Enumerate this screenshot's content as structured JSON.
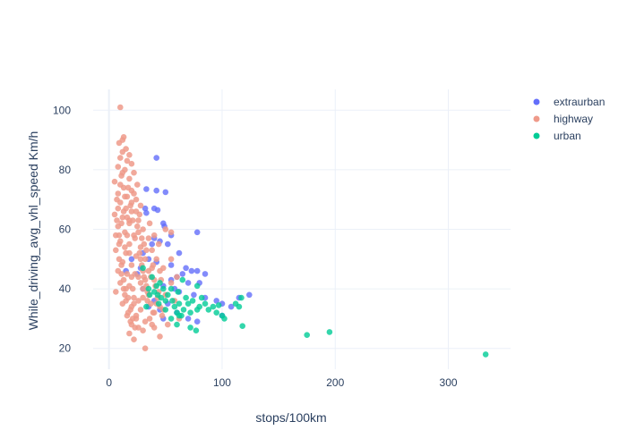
{
  "chart_data": {
    "type": "scatter",
    "title": "",
    "xlabel": "stops/100km",
    "ylabel": "While_driving_avg_vhl_speed Km/h",
    "xlim": [
      -14,
      355
    ],
    "ylim": [
      13,
      107
    ],
    "xticks": [
      0,
      100,
      200,
      300
    ],
    "yticks": [
      20,
      40,
      60,
      80,
      100
    ],
    "grid": true,
    "legend_position": "top-right",
    "series": [
      {
        "name": "extraurban",
        "color": "#636efa",
        "points": [
          [
            42,
            84
          ],
          [
            33,
            73.5
          ],
          [
            42,
            73
          ],
          [
            50,
            72.5
          ],
          [
            32,
            67
          ],
          [
            40,
            67
          ],
          [
            43,
            66.5
          ],
          [
            33,
            65.5
          ],
          [
            48,
            62
          ],
          [
            49,
            61
          ],
          [
            78,
            59
          ],
          [
            55,
            58
          ],
          [
            40,
            57
          ],
          [
            45,
            56
          ],
          [
            52,
            55
          ],
          [
            62,
            52
          ],
          [
            35,
            50
          ],
          [
            42,
            49
          ],
          [
            55,
            48
          ],
          [
            68,
            47
          ],
          [
            73,
            46
          ],
          [
            78,
            46
          ],
          [
            85,
            45
          ],
          [
            65,
            45
          ],
          [
            60,
            44
          ],
          [
            55,
            43
          ],
          [
            70,
            42
          ],
          [
            80,
            42
          ],
          [
            48,
            41
          ],
          [
            58,
            40
          ],
          [
            62,
            39
          ],
          [
            75,
            38
          ],
          [
            85,
            37
          ],
          [
            95,
            36
          ],
          [
            100,
            35
          ],
          [
            108,
            34
          ],
          [
            124,
            38
          ],
          [
            115,
            37
          ],
          [
            40,
            36
          ],
          [
            52,
            35
          ],
          [
            45,
            33
          ],
          [
            60,
            32
          ],
          [
            70,
            30
          ],
          [
            78,
            29
          ],
          [
            100,
            31
          ],
          [
            48,
            30
          ],
          [
            35,
            34
          ],
          [
            30,
            40
          ],
          [
            28,
            47
          ],
          [
            30,
            52
          ],
          [
            38,
            55
          ],
          [
            25,
            45
          ],
          [
            20,
            50
          ],
          [
            15,
            46
          ]
        ]
      },
      {
        "name": "highway",
        "color": "#ef9a8a",
        "points": [
          [
            10,
            101
          ],
          [
            13,
            91
          ],
          [
            12,
            90
          ],
          [
            9,
            89
          ],
          [
            15,
            87
          ],
          [
            12,
            86
          ],
          [
            18,
            85
          ],
          [
            10,
            84
          ],
          [
            16,
            83
          ],
          [
            20,
            82
          ],
          [
            8,
            81
          ],
          [
            14,
            80
          ],
          [
            22,
            79
          ],
          [
            11,
            78
          ],
          [
            18,
            77
          ],
          [
            5,
            76
          ],
          [
            25,
            75
          ],
          [
            13,
            74
          ],
          [
            20,
            73
          ],
          [
            8,
            72
          ],
          [
            16,
            71
          ],
          [
            24,
            70
          ],
          [
            10,
            69
          ],
          [
            28,
            68
          ],
          [
            15,
            67
          ],
          [
            20,
            66
          ],
          [
            5,
            65
          ],
          [
            12,
            64
          ],
          [
            26,
            63
          ],
          [
            18,
            62
          ],
          [
            8,
            61
          ],
          [
            30,
            60
          ],
          [
            14,
            59
          ],
          [
            22,
            58
          ],
          [
            35,
            57
          ],
          [
            10,
            56
          ],
          [
            18,
            55
          ],
          [
            28,
            54
          ],
          [
            6,
            53
          ],
          [
            15,
            52
          ],
          [
            24,
            51
          ],
          [
            32,
            50
          ],
          [
            12,
            49
          ],
          [
            20,
            48
          ],
          [
            38,
            47
          ],
          [
            8,
            46
          ],
          [
            16,
            45
          ],
          [
            26,
            44
          ],
          [
            40,
            43
          ],
          [
            10,
            42
          ],
          [
            18,
            41
          ],
          [
            30,
            40
          ],
          [
            6,
            39
          ],
          [
            14,
            38
          ],
          [
            22,
            37
          ],
          [
            34,
            36
          ],
          [
            12,
            35
          ],
          [
            20,
            34
          ],
          [
            28,
            33
          ],
          [
            40,
            32
          ],
          [
            16,
            31
          ],
          [
            24,
            30
          ],
          [
            32,
            29
          ],
          [
            20,
            28
          ],
          [
            26,
            27
          ],
          [
            30,
            26
          ],
          [
            18,
            25
          ],
          [
            22,
            23
          ],
          [
            32,
            20
          ],
          [
            45,
            24
          ],
          [
            40,
            27
          ],
          [
            48,
            33
          ],
          [
            50,
            38
          ],
          [
            55,
            42
          ],
          [
            45,
            46
          ],
          [
            42,
            50
          ],
          [
            38,
            53
          ],
          [
            55,
            50
          ],
          [
            60,
            44
          ],
          [
            58,
            36
          ],
          [
            62,
            30
          ],
          [
            52,
            28
          ],
          [
            55,
            59
          ],
          [
            50,
            60
          ],
          [
            44,
            55
          ],
          [
            36,
            62
          ],
          [
            40,
            58
          ],
          [
            9,
            58
          ],
          [
            11,
            62
          ],
          [
            13,
            66
          ],
          [
            7,
            70
          ],
          [
            17,
            74
          ],
          [
            19,
            68
          ],
          [
            21,
            63
          ],
          [
            23,
            57
          ],
          [
            27,
            52
          ],
          [
            29,
            48
          ],
          [
            31,
            44
          ],
          [
            33,
            41
          ],
          [
            35,
            38
          ],
          [
            37,
            35
          ],
          [
            39,
            32
          ],
          [
            9,
            50
          ],
          [
            11,
            45
          ],
          [
            13,
            40
          ],
          [
            15,
            36
          ],
          [
            17,
            32
          ],
          [
            19,
            29
          ],
          [
            21,
            40
          ],
          [
            23,
            45
          ],
          [
            25,
            61
          ],
          [
            27,
            65
          ],
          [
            29,
            57
          ],
          [
            31,
            55
          ],
          [
            33,
            53
          ],
          [
            35,
            46
          ],
          [
            37,
            44
          ],
          [
            39,
            48
          ],
          [
            41,
            41
          ],
          [
            43,
            37
          ],
          [
            45,
            34
          ],
          [
            47,
            31
          ],
          [
            14,
            54
          ],
          [
            16,
            58
          ],
          [
            18,
            63
          ],
          [
            20,
            69
          ],
          [
            22,
            72
          ],
          [
            24,
            66
          ],
          [
            26,
            59
          ],
          [
            28,
            50
          ],
          [
            30,
            46
          ],
          [
            32,
            43
          ],
          [
            34,
            39
          ],
          [
            36,
            30
          ],
          [
            38,
            28
          ],
          [
            42,
            35
          ],
          [
            44,
            39
          ],
          [
            46,
            43
          ],
          [
            48,
            47
          ],
          [
            8,
            67
          ],
          [
            10,
            75
          ],
          [
            12,
            79
          ],
          [
            14,
            71
          ],
          [
            16,
            64
          ],
          [
            18,
            52
          ],
          [
            20,
            44
          ],
          [
            22,
            35
          ],
          [
            24,
            31
          ],
          [
            26,
            36
          ],
          [
            28,
            42
          ],
          [
            30,
            37
          ],
          [
            6,
            58
          ],
          [
            7,
            63
          ],
          [
            9,
            55
          ],
          [
            11,
            48
          ],
          [
            13,
            43
          ],
          [
            15,
            40
          ],
          [
            17,
            37
          ],
          [
            19,
            33
          ],
          [
            21,
            30
          ],
          [
            23,
            27
          ]
        ]
      },
      {
        "name": "urban",
        "color": "#00cc96",
        "points": [
          [
            333,
            18
          ],
          [
            195,
            25.5
          ],
          [
            175,
            24.5
          ],
          [
            118,
            27.5
          ],
          [
            117,
            37
          ],
          [
            115,
            34
          ],
          [
            112,
            35
          ],
          [
            102,
            30
          ],
          [
            100,
            31
          ],
          [
            97,
            34.5
          ],
          [
            95,
            32
          ],
          [
            92,
            34
          ],
          [
            85,
            35
          ],
          [
            80,
            34
          ],
          [
            78,
            33
          ],
          [
            77,
            26
          ],
          [
            74,
            36
          ],
          [
            72,
            32
          ],
          [
            70,
            35
          ],
          [
            68,
            37
          ],
          [
            66,
            33
          ],
          [
            64,
            31
          ],
          [
            62,
            35
          ],
          [
            61,
            39
          ],
          [
            60,
            32
          ],
          [
            58,
            34
          ],
          [
            56,
            36
          ],
          [
            55,
            40
          ],
          [
            52,
            38
          ],
          [
            50,
            36
          ],
          [
            48,
            40
          ],
          [
            46,
            37
          ],
          [
            45,
            42
          ],
          [
            44,
            35
          ],
          [
            43,
            38
          ],
          [
            42,
            41
          ],
          [
            40,
            39
          ],
          [
            38,
            44
          ],
          [
            36,
            38
          ],
          [
            35,
            40
          ],
          [
            33,
            34
          ],
          [
            30,
            47
          ],
          [
            65,
            43
          ],
          [
            72,
            27
          ],
          [
            78,
            41
          ],
          [
            82,
            37
          ],
          [
            88,
            33
          ],
          [
            60,
            28
          ],
          [
            55,
            30
          ],
          [
            50,
            33
          ],
          [
            62,
            31
          ]
        ]
      }
    ]
  }
}
